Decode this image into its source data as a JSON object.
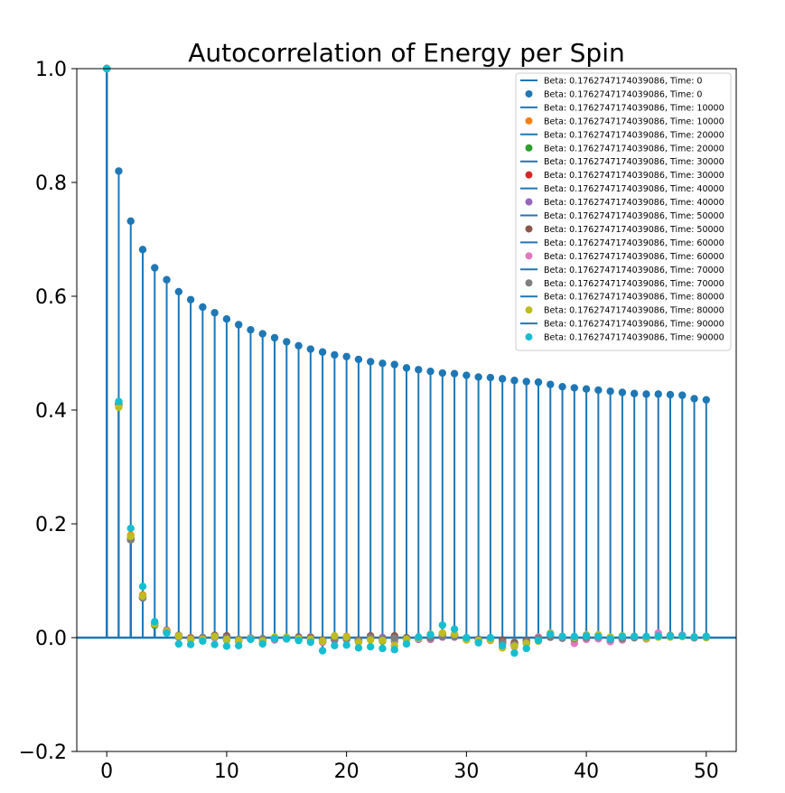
{
  "chart_data": {
    "type": "stem",
    "title": "Autocorrelation of Energy per Spin",
    "xlabel": "",
    "ylabel": "",
    "xlim": [
      -2.5,
      52.5
    ],
    "ylim": [
      -0.2,
      1.0
    ],
    "xticks": [
      0,
      10,
      20,
      30,
      40,
      50
    ],
    "yticks": [
      -0.2,
      0.0,
      0.2,
      0.4,
      0.6,
      0.8,
      1.0
    ],
    "xtick_labels": [
      "0",
      "10",
      "20",
      "30",
      "40",
      "50"
    ],
    "ytick_labels": [
      "−0.2",
      "0.0",
      "0.2",
      "0.4",
      "0.6",
      "0.8",
      "1.0"
    ],
    "grid": false,
    "legend_position": "top-right",
    "stem_color": "#1f77b4",
    "baseline_color": "#1f77b4",
    "x": [
      0,
      1,
      2,
      3,
      4,
      5,
      6,
      7,
      8,
      9,
      10,
      11,
      12,
      13,
      14,
      15,
      16,
      17,
      18,
      19,
      20,
      21,
      22,
      23,
      24,
      25,
      26,
      27,
      28,
      29,
      30,
      31,
      32,
      33,
      34,
      35,
      36,
      37,
      38,
      39,
      40,
      41,
      42,
      43,
      44,
      45,
      46,
      47,
      48,
      49,
      50
    ],
    "series": [
      {
        "name": "Beta: 0.1762747174039086, Time: 0",
        "marker_color": "#1f77b4",
        "values": [
          1.0,
          0.82,
          0.732,
          0.682,
          0.65,
          0.629,
          0.608,
          0.594,
          0.581,
          0.571,
          0.56,
          0.55,
          0.541,
          0.534,
          0.527,
          0.52,
          0.513,
          0.507,
          0.502,
          0.497,
          0.494,
          0.489,
          0.485,
          0.482,
          0.48,
          0.474,
          0.471,
          0.468,
          0.465,
          0.464,
          0.461,
          0.458,
          0.457,
          0.455,
          0.452,
          0.45,
          0.449,
          0.445,
          0.441,
          0.439,
          0.437,
          0.435,
          0.433,
          0.431,
          0.429,
          0.428,
          0.428,
          0.427,
          0.426,
          0.42,
          0.418
        ]
      },
      {
        "name": "Beta: 0.1762747174039086, Time: 10000",
        "marker_color": "#ff7f0e",
        "values": [
          1.0,
          0.41,
          0.18,
          0.075,
          0.025,
          0.012,
          0.003,
          0.0,
          -0.002,
          0.002,
          -0.002,
          -0.003,
          -0.001,
          -0.004,
          -0.001,
          0.0,
          -0.002,
          0.001,
          -0.004,
          -0.002,
          0.002,
          -0.005,
          0.001,
          -0.004,
          0.001,
          -0.001,
          0.0,
          0.002,
          0.005,
          0.003,
          -0.002,
          -0.004,
          -0.002,
          -0.006,
          -0.008,
          -0.006,
          -0.002,
          0.002,
          0.0,
          -0.001,
          -0.002,
          0.001,
          -0.003,
          0.0,
          0.001,
          -0.002,
          0.003,
          0.004,
          0.003,
          0.0,
          0.001
        ]
      },
      {
        "name": "Beta: 0.1762747174039086, Time: 20000",
        "marker_color": "#2ca02c",
        "values": [
          1.0,
          0.41,
          0.175,
          0.072,
          0.022,
          0.01,
          0.001,
          -0.003,
          -0.001,
          0.0,
          -0.004,
          -0.005,
          -0.002,
          -0.006,
          -0.002,
          -0.001,
          -0.004,
          -0.003,
          -0.008,
          -0.004,
          -0.003,
          -0.008,
          -0.001,
          -0.006,
          -0.006,
          -0.003,
          -0.002,
          0.0,
          0.006,
          0.004,
          -0.003,
          -0.006,
          -0.004,
          -0.01,
          -0.012,
          -0.009,
          -0.004,
          0.004,
          0.0,
          -0.003,
          0.0,
          0.002,
          -0.001,
          0.001,
          0.002,
          0.0,
          0.002,
          0.002,
          0.003,
          0.001,
          0.002
        ]
      },
      {
        "name": "Beta: 0.1762747174039086, Time: 30000",
        "marker_color": "#d62728",
        "values": [
          1.0,
          0.41,
          0.172,
          0.07,
          0.024,
          0.011,
          0.002,
          -0.001,
          -0.002,
          0.003,
          0.0,
          -0.006,
          -0.002,
          -0.005,
          -0.003,
          0.0,
          -0.003,
          0.0,
          -0.006,
          -0.003,
          -0.002,
          -0.006,
          -0.001,
          -0.003,
          0.002,
          -0.002,
          -0.002,
          -0.002,
          0.002,
          0.004,
          -0.002,
          -0.003,
          -0.002,
          -0.009,
          -0.01,
          -0.007,
          -0.001,
          0.003,
          0.001,
          -0.002,
          0.0,
          0.002,
          -0.002,
          -0.002,
          0.001,
          -0.001,
          0.002,
          0.002,
          0.003,
          0.0,
          0.001
        ]
      },
      {
        "name": "Beta: 0.1762747174039086, Time: 40000",
        "marker_color": "#9467bd",
        "values": [
          1.0,
          0.41,
          0.172,
          0.07,
          0.024,
          0.01,
          0.003,
          -0.003,
          0.0,
          0.001,
          -0.002,
          -0.004,
          -0.001,
          -0.003,
          -0.004,
          -0.002,
          -0.001,
          -0.002,
          -0.006,
          -0.005,
          -0.003,
          -0.004,
          0.0,
          0.0,
          -0.001,
          -0.001,
          -0.003,
          -0.003,
          0.001,
          0.001,
          -0.001,
          -0.003,
          -0.003,
          -0.008,
          -0.014,
          -0.01,
          0.0,
          0.001,
          -0.001,
          -0.002,
          0.0,
          0.001,
          -0.005,
          -0.001,
          0.0,
          -0.001,
          0.002,
          0.002,
          0.003,
          0.0,
          0.001
        ]
      },
      {
        "name": "Beta: 0.1762747174039086, Time: 50000",
        "marker_color": "#8c564b",
        "values": [
          1.0,
          0.41,
          0.172,
          0.07,
          0.025,
          0.013,
          0.004,
          -0.002,
          0.0,
          0.004,
          0.003,
          -0.004,
          -0.001,
          -0.002,
          0.0,
          0.0,
          0.001,
          0.0,
          -0.004,
          -0.002,
          -0.001,
          -0.004,
          0.003,
          -0.002,
          0.003,
          0.0,
          -0.001,
          -0.001,
          0.002,
          0.002,
          -0.003,
          -0.003,
          -0.001,
          -0.004,
          -0.009,
          -0.005,
          -0.002,
          0.001,
          0.0,
          -0.002,
          0.0,
          0.0,
          -0.003,
          -0.002,
          0.0,
          -0.001,
          0.002,
          0.003,
          0.004,
          0.0,
          0.001
        ]
      },
      {
        "name": "Beta: 0.1762747174039086, Time: 60000",
        "marker_color": "#e377c2",
        "values": [
          1.0,
          0.41,
          0.172,
          0.072,
          0.025,
          0.012,
          0.002,
          -0.003,
          -0.001,
          0.0,
          -0.002,
          -0.005,
          -0.002,
          -0.003,
          -0.004,
          -0.002,
          -0.003,
          -0.003,
          -0.008,
          -0.004,
          -0.003,
          -0.007,
          0.0,
          -0.003,
          -0.004,
          -0.002,
          -0.002,
          -0.003,
          0.001,
          0.001,
          -0.002,
          -0.005,
          -0.003,
          -0.012,
          -0.016,
          -0.008,
          0.001,
          0.005,
          0.002,
          -0.01,
          -0.003,
          -0.002,
          -0.007,
          -0.004,
          0.0,
          -0.002,
          0.008,
          0.003,
          0.004,
          0.0,
          0.001
        ]
      },
      {
        "name": "Beta: 0.1762747174039086, Time: 70000",
        "marker_color": "#7f7f7f",
        "values": [
          1.0,
          0.41,
          0.172,
          0.07,
          0.025,
          0.01,
          0.003,
          -0.001,
          0.0,
          0.002,
          0.0,
          -0.003,
          -0.001,
          -0.002,
          -0.002,
          0.0,
          -0.001,
          -0.001,
          -0.005,
          -0.003,
          -0.002,
          -0.005,
          0.0,
          -0.002,
          -0.001,
          -0.001,
          -0.001,
          -0.001,
          0.002,
          0.002,
          -0.002,
          -0.003,
          -0.002,
          -0.008,
          -0.012,
          -0.007,
          -0.001,
          0.002,
          0.0,
          -0.002,
          0.0,
          0.001,
          -0.003,
          -0.002,
          0.0,
          -0.001,
          0.002,
          0.002,
          0.003,
          0.0,
          0.001
        ]
      },
      {
        "name": "Beta: 0.1762747174039086, Time: 80000",
        "marker_color": "#bcbd22",
        "values": [
          1.0,
          0.405,
          0.178,
          0.073,
          0.024,
          0.011,
          0.003,
          -0.003,
          -0.003,
          0.002,
          -0.003,
          -0.005,
          -0.002,
          -0.006,
          0.001,
          0.0,
          -0.002,
          -0.003,
          -0.006,
          0.003,
          0.001,
          -0.008,
          -0.004,
          -0.005,
          -0.014,
          -0.003,
          -0.001,
          0.006,
          0.008,
          0.006,
          -0.004,
          -0.005,
          -0.005,
          -0.018,
          -0.015,
          -0.01,
          -0.006,
          0.008,
          0.002,
          0.0,
          0.005,
          0.005,
          0.001,
          0.003,
          0.002,
          -0.001,
          0.001,
          0.001,
          0.002,
          0.001,
          0.0
        ]
      },
      {
        "name": "Beta: 0.1762747174039086, Time: 90000",
        "marker_color": "#17becf",
        "values": [
          1.0,
          0.415,
          0.192,
          0.09,
          0.028,
          0.008,
          -0.011,
          -0.012,
          -0.006,
          -0.012,
          -0.015,
          -0.014,
          -0.003,
          -0.011,
          -0.002,
          -0.002,
          -0.005,
          -0.008,
          -0.023,
          -0.014,
          -0.013,
          -0.018,
          -0.016,
          -0.019,
          -0.021,
          -0.011,
          0.001,
          0.005,
          0.022,
          0.015,
          0.0,
          -0.009,
          0.0,
          -0.014,
          -0.027,
          -0.019,
          -0.005,
          0.006,
          0.002,
          0.002,
          0.003,
          0.002,
          -0.002,
          0.002,
          0.002,
          0.002,
          0.003,
          0.003,
          0.003,
          0.001,
          0.002
        ]
      }
    ]
  }
}
